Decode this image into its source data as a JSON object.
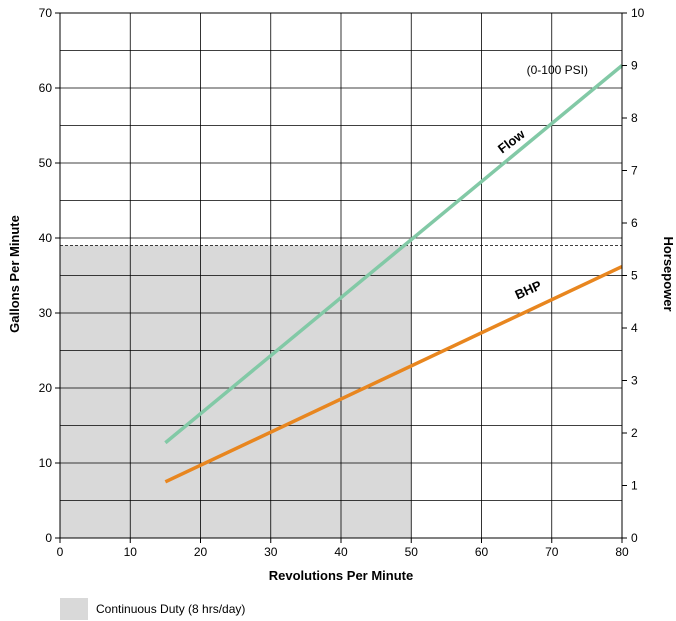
{
  "chart_data": {
    "type": "line",
    "xlabel": "Revolutions Per Minute",
    "ylabel": "Gallons Per Minute",
    "y2label": "Horsepower",
    "xlim": [
      0,
      80
    ],
    "ylim": [
      0,
      70
    ],
    "y2lim": [
      0,
      10
    ],
    "xticks": [
      0,
      10,
      20,
      30,
      40,
      50,
      60,
      70,
      80
    ],
    "yticks": [
      0,
      10,
      20,
      30,
      40,
      50,
      60,
      70
    ],
    "y2ticks": [
      0,
      1,
      2,
      3,
      4,
      5,
      6,
      7,
      8,
      9,
      10
    ],
    "grid": true,
    "annotation": "(0-100 PSI)",
    "series": [
      {
        "name": "Flow",
        "axis": "left",
        "color": "#82c9a6",
        "x": [
          15,
          80
        ],
        "y": [
          12.7,
          63
        ]
      },
      {
        "name": "BHP",
        "axis": "right",
        "color": "#e8861f",
        "x": [
          15,
          80
        ],
        "y": [
          1.07,
          5.17
        ]
      }
    ],
    "continuous_duty": {
      "label": "Continuous Duty (8 hrs/day)",
      "color": "#d9d9d9",
      "x_max": 50,
      "y_max": 39
    }
  }
}
